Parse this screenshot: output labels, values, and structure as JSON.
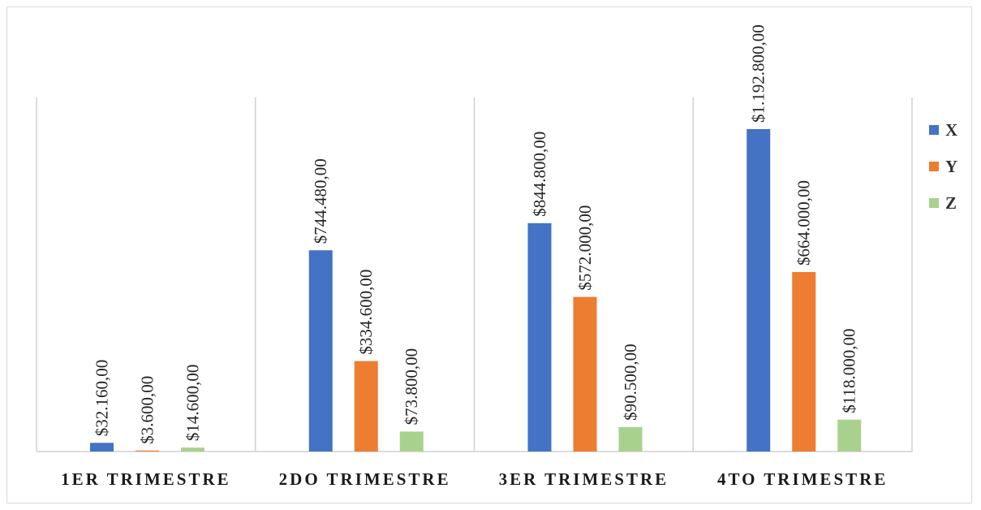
{
  "chart_data": {
    "type": "bar",
    "categories": [
      "1ER TRIMESTRE",
      "2DO TRIMESTRE",
      "3ER TRIMESTRE",
      "4TO TRIMESTRE"
    ],
    "series": [
      {
        "name": "X",
        "color": "#4472C4",
        "values": [
          32160,
          744480,
          844800,
          1192800
        ],
        "labels": [
          "$32.160,00",
          "$744.480,00",
          "$844.800,00",
          "$1.192.800,00"
        ]
      },
      {
        "name": "Y",
        "color": "#ED7D31",
        "values": [
          3600,
          334600,
          572000,
          664000
        ],
        "labels": [
          "$3.600,00",
          "$334.600,00",
          "$572.000,00",
          "$664.000,00"
        ]
      },
      {
        "name": "Z",
        "color": "#A9D18E",
        "values": [
          14600,
          73800,
          90500,
          118000
        ],
        "labels": [
          "$14.600,00",
          "$73.800,00",
          "$90.500,00",
          "$118.000,00"
        ]
      }
    ],
    "title": "",
    "xlabel": "",
    "ylabel": "",
    "ylim": [
      0,
      1400000
    ],
    "grid": false,
    "category_dividers": true,
    "legend": "right"
  }
}
